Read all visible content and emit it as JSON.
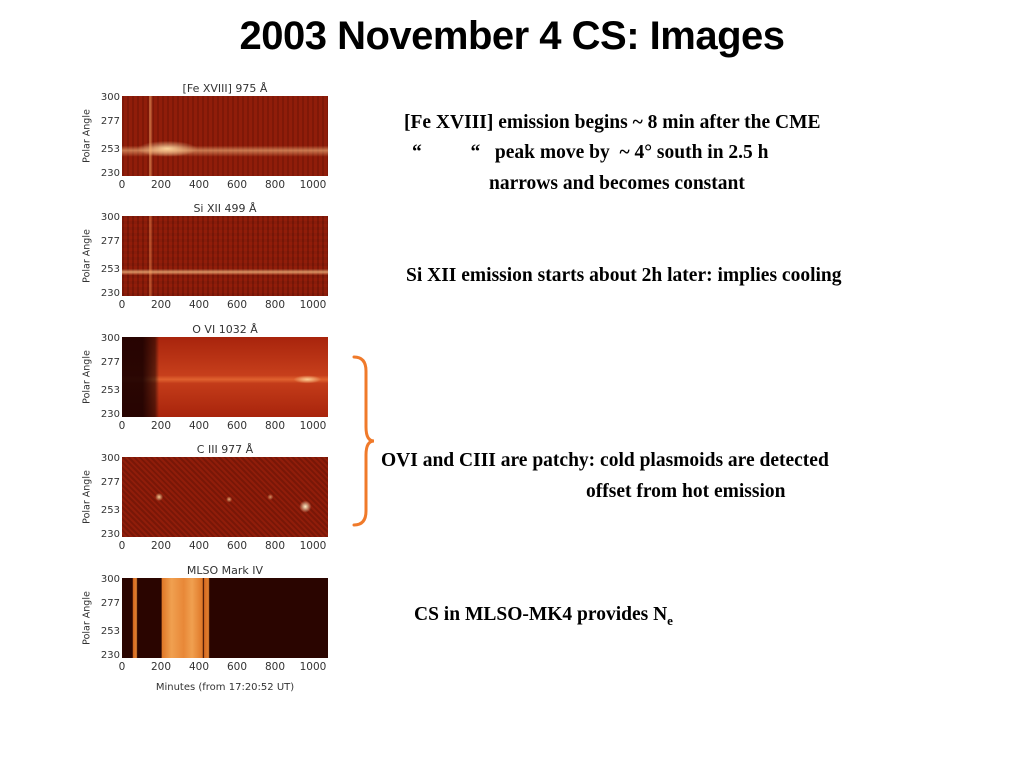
{
  "title": "2003 November 4 CS: Images",
  "panels": [
    {
      "title": "[Fe XVIII] 975 Å",
      "ylabel": "Polar Angle",
      "yticks": [
        "300",
        "277",
        "253",
        "230"
      ],
      "xticks": [
        "0",
        "200",
        "400",
        "600",
        "800",
        "1000"
      ]
    },
    {
      "title": "Si XII 499 Å",
      "ylabel": "Polar Angle",
      "yticks": [
        "300",
        "277",
        "253",
        "230"
      ],
      "xticks": [
        "0",
        "200",
        "400",
        "600",
        "800",
        "1000"
      ]
    },
    {
      "title": "O VI 1032 Å",
      "ylabel": "Polar Angle",
      "yticks": [
        "300",
        "277",
        "253",
        "230"
      ],
      "xticks": [
        "0",
        "200",
        "400",
        "600",
        "800",
        "1000"
      ]
    },
    {
      "title": "C III 977 Å",
      "ylabel": "Polar Angle",
      "yticks": [
        "300",
        "277",
        "253",
        "230"
      ],
      "xticks": [
        "0",
        "200",
        "400",
        "600",
        "800",
        "1000"
      ]
    },
    {
      "title": "MLSO Mark IV",
      "ylabel": "Polar Angle",
      "yticks": [
        "300",
        "277",
        "253",
        "230"
      ],
      "xticks": [
        "0",
        "200",
        "400",
        "600",
        "800",
        "1000"
      ]
    }
  ],
  "xaxis_title": "Minutes (from 17:20:52 UT)",
  "notes": {
    "fe_line1": "[Fe XVIII] emission begins ~ 8 min after  the CME",
    "fe_line2": "“          “   peak move by  ~ 4° south in 2.5 h",
    "fe_line3": "narrows and  becomes constant",
    "si": "Si XII  emission starts about 2h later: implies cooling",
    "ovi_line1": "OVI and CIII  are patchy: cold plasmoids are detected",
    "ovi_line2": "offset from hot emission",
    "cs_main": "CS in  MLSO-MK4  provides N",
    "cs_sub": "e"
  },
  "colors": {
    "brace": "#f07a2a",
    "plot_bg": "#7a1205",
    "emission": "#ffd9a0"
  }
}
